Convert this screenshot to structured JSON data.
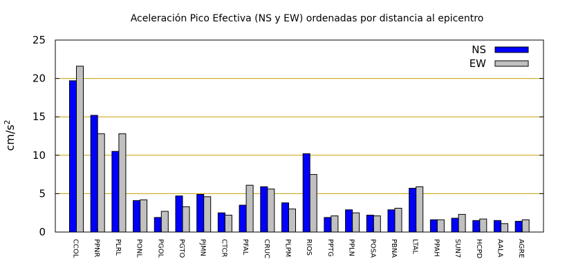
{
  "chart_data": {
    "type": "bar",
    "title": "Aceleración Pico Efectiva (NS y EW) ordenadas por distancia al epicentro",
    "ylabel": "cm/s",
    "ylabel_sup": "2",
    "xlabel": "",
    "ylim": [
      0,
      25
    ],
    "yticks": [
      0,
      5,
      10,
      15,
      20,
      25
    ],
    "grid": "horizontal",
    "legend_position": "top-right",
    "categories": [
      "CCOL",
      "PPNR",
      "PLRL",
      "PONL",
      "PGOL",
      "PGTO",
      "PJMN",
      "CTCR",
      "PFAL",
      "CRUC",
      "PLPM",
      "RIOS",
      "PPTG",
      "PPLN",
      "POSA",
      "PBNA",
      "LTAL",
      "PPAH",
      "SUN7",
      "HCPD",
      "AALA",
      "AGRE"
    ],
    "series": [
      {
        "name": "NS",
        "color": "#0000ff",
        "values": [
          19.7,
          15.2,
          10.5,
          4.1,
          1.9,
          4.7,
          4.9,
          2.5,
          3.5,
          5.9,
          3.8,
          10.2,
          1.9,
          2.9,
          2.2,
          2.9,
          5.7,
          1.6,
          1.8,
          1.5,
          1.5,
          1.4
        ]
      },
      {
        "name": "EW",
        "color": "#c0c0c0",
        "values": [
          21.6,
          12.8,
          12.8,
          4.2,
          2.7,
          3.3,
          4.6,
          2.2,
          6.1,
          5.6,
          3.0,
          7.5,
          2.1,
          2.5,
          2.1,
          3.1,
          5.9,
          1.6,
          2.3,
          1.7,
          1.1,
          1.6
        ]
      }
    ],
    "gridline_color": "#c8a000"
  }
}
